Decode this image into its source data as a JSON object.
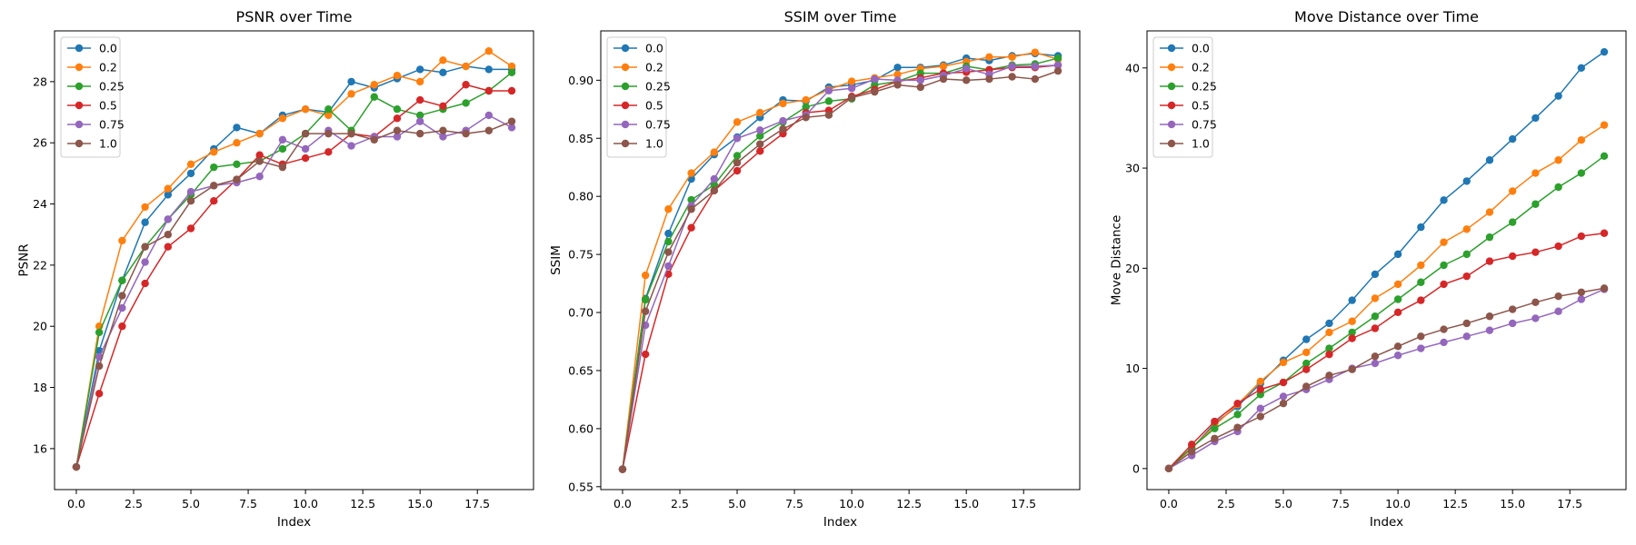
{
  "figure": {
    "xlabel_common": "Index"
  },
  "chart_data": [
    {
      "type": "line",
      "title": "PSNR over Time",
      "xlabel": "Index",
      "ylabel": "PSNR",
      "xlim": [
        -0.95,
        19.95
      ],
      "ylim": [
        14.66,
        29.66
      ],
      "xticks": [
        0.0,
        2.5,
        5.0,
        7.5,
        10.0,
        12.5,
        15.0,
        17.5
      ],
      "xtick_labels": [
        "0.0",
        "2.5",
        "5.0",
        "7.5",
        "10.0",
        "12.5",
        "15.0",
        "17.5"
      ],
      "yticks": [
        16,
        18,
        20,
        22,
        24,
        26,
        28
      ],
      "ytick_labels": [
        "16",
        "18",
        "20",
        "22",
        "24",
        "26",
        "28"
      ],
      "legend": "top-left",
      "grid": false,
      "x": [
        0,
        1,
        2,
        3,
        4,
        5,
        6,
        7,
        8,
        9,
        10,
        11,
        12,
        13,
        14,
        15,
        16,
        17,
        18,
        19
      ],
      "series": [
        {
          "name": "0.0",
          "color": "#1f77b4",
          "values": [
            15.4,
            19.2,
            21.5,
            23.4,
            24.3,
            25.0,
            25.8,
            26.5,
            26.3,
            26.9,
            27.1,
            27.0,
            28.0,
            27.8,
            28.1,
            28.4,
            28.3,
            28.5,
            28.4,
            28.4
          ]
        },
        {
          "name": "0.2",
          "color": "#ff7f0e",
          "values": [
            15.4,
            20.0,
            22.8,
            23.9,
            24.5,
            25.3,
            25.7,
            26.0,
            26.3,
            26.8,
            27.1,
            26.9,
            27.6,
            27.9,
            28.2,
            28.0,
            28.7,
            28.5,
            29.0,
            28.5
          ]
        },
        {
          "name": "0.25",
          "color": "#2ca02c",
          "values": [
            15.4,
            19.8,
            21.5,
            22.6,
            23.5,
            24.3,
            25.2,
            25.3,
            25.4,
            25.8,
            26.3,
            27.1,
            26.4,
            27.5,
            27.1,
            26.9,
            27.1,
            27.3,
            27.7,
            28.3
          ]
        },
        {
          "name": "0.5",
          "color": "#d62728",
          "values": [
            15.4,
            17.8,
            20.0,
            21.4,
            22.6,
            23.2,
            24.1,
            24.8,
            25.6,
            25.3,
            25.5,
            25.7,
            26.3,
            26.2,
            26.8,
            27.4,
            27.2,
            27.9,
            27.7,
            27.7
          ]
        },
        {
          "name": "0.75",
          "color": "#9467bd",
          "values": [
            15.4,
            19.0,
            20.6,
            22.1,
            23.5,
            24.4,
            24.6,
            24.7,
            24.9,
            26.1,
            25.8,
            26.4,
            25.9,
            26.2,
            26.2,
            26.7,
            26.2,
            26.4,
            26.9,
            26.5
          ]
        },
        {
          "name": "1.0",
          "color": "#8c564b",
          "values": [
            15.4,
            18.7,
            21.0,
            22.6,
            23.0,
            24.1,
            24.6,
            24.8,
            25.4,
            25.2,
            26.3,
            26.3,
            26.3,
            26.1,
            26.4,
            26.3,
            26.4,
            26.3,
            26.4,
            26.7
          ]
        }
      ]
    },
    {
      "type": "line",
      "title": "SSIM over Time",
      "xlabel": "Index",
      "ylabel": "SSIM",
      "xlim": [
        -0.95,
        19.95
      ],
      "ylim": [
        0.5475,
        0.9425
      ],
      "xticks": [
        0.0,
        2.5,
        5.0,
        7.5,
        10.0,
        12.5,
        15.0,
        17.5
      ],
      "xtick_labels": [
        "0.0",
        "2.5",
        "5.0",
        "7.5",
        "10.0",
        "12.5",
        "15.0",
        "17.5"
      ],
      "yticks": [
        0.55,
        0.6,
        0.65,
        0.7,
        0.75,
        0.8,
        0.85,
        0.9
      ],
      "ytick_labels": [
        "0.55",
        "0.60",
        "0.65",
        "0.70",
        "0.75",
        "0.80",
        "0.85",
        "0.90"
      ],
      "legend": "top-left",
      "grid": false,
      "x": [
        0,
        1,
        2,
        3,
        4,
        5,
        6,
        7,
        8,
        9,
        10,
        11,
        12,
        13,
        14,
        15,
        16,
        17,
        18,
        19
      ],
      "series": [
        {
          "name": "0.0",
          "color": "#1f77b4",
          "values": [
            0.565,
            0.712,
            0.768,
            0.815,
            0.836,
            0.851,
            0.868,
            0.883,
            0.882,
            0.894,
            0.896,
            0.9,
            0.911,
            0.911,
            0.913,
            0.919,
            0.917,
            0.921,
            0.923,
            0.921
          ]
        },
        {
          "name": "0.2",
          "color": "#ff7f0e",
          "values": [
            0.565,
            0.732,
            0.789,
            0.82,
            0.838,
            0.864,
            0.872,
            0.88,
            0.883,
            0.892,
            0.899,
            0.902,
            0.905,
            0.91,
            0.912,
            0.916,
            0.92,
            0.92,
            0.924,
            0.918
          ]
        },
        {
          "name": "0.25",
          "color": "#2ca02c",
          "values": [
            0.565,
            0.711,
            0.761,
            0.797,
            0.81,
            0.835,
            0.852,
            0.864,
            0.877,
            0.882,
            0.884,
            0.896,
            0.899,
            0.906,
            0.906,
            0.912,
            0.909,
            0.913,
            0.914,
            0.919
          ]
        },
        {
          "name": "0.5",
          "color": "#d62728",
          "values": [
            0.565,
            0.664,
            0.733,
            0.773,
            0.805,
            0.822,
            0.839,
            0.854,
            0.872,
            0.874,
            0.886,
            0.892,
            0.899,
            0.902,
            0.906,
            0.907,
            0.909,
            0.911,
            0.911,
            0.913
          ]
        },
        {
          "name": "0.75",
          "color": "#9467bd",
          "values": [
            0.565,
            0.689,
            0.74,
            0.792,
            0.815,
            0.85,
            0.857,
            0.865,
            0.87,
            0.891,
            0.893,
            0.901,
            0.9,
            0.9,
            0.904,
            0.91,
            0.905,
            0.912,
            0.912,
            0.913
          ]
        },
        {
          "name": "1.0",
          "color": "#8c564b",
          "values": [
            0.565,
            0.701,
            0.752,
            0.789,
            0.805,
            0.829,
            0.845,
            0.858,
            0.868,
            0.87,
            0.885,
            0.89,
            0.896,
            0.894,
            0.901,
            0.9,
            0.901,
            0.903,
            0.901,
            0.908
          ]
        }
      ]
    },
    {
      "type": "line",
      "title": "Move Distance over Time",
      "xlabel": "Index",
      "ylabel": "Move Distance",
      "xlim": [
        -0.95,
        19.95
      ],
      "ylim": [
        -2.1,
        43.7
      ],
      "xticks": [
        0.0,
        2.5,
        5.0,
        7.5,
        10.0,
        12.5,
        15.0,
        17.5
      ],
      "xtick_labels": [
        "0.0",
        "2.5",
        "5.0",
        "7.5",
        "10.0",
        "12.5",
        "15.0",
        "17.5"
      ],
      "yticks": [
        0,
        10,
        20,
        30,
        40
      ],
      "ytick_labels": [
        "0",
        "10",
        "20",
        "30",
        "40"
      ],
      "legend": "top-left",
      "grid": false,
      "x": [
        0,
        1,
        2,
        3,
        4,
        5,
        6,
        7,
        8,
        9,
        10,
        11,
        12,
        13,
        14,
        15,
        16,
        17,
        18,
        19
      ],
      "series": [
        {
          "name": "0.0",
          "color": "#1f77b4",
          "values": [
            0.0,
            2.0,
            4.5,
            6.2,
            8.5,
            10.8,
            12.9,
            14.5,
            16.8,
            19.4,
            21.4,
            24.1,
            26.8,
            28.7,
            30.8,
            32.9,
            35.0,
            37.2,
            40.0,
            41.6
          ]
        },
        {
          "name": "0.2",
          "color": "#ff7f0e",
          "values": [
            0.0,
            2.0,
            4.3,
            6.4,
            8.7,
            10.6,
            11.6,
            13.6,
            14.7,
            17.0,
            18.4,
            20.3,
            22.6,
            23.9,
            25.6,
            27.7,
            29.5,
            30.8,
            32.8,
            34.3
          ]
        },
        {
          "name": "0.25",
          "color": "#2ca02c",
          "values": [
            0.0,
            2.1,
            4.0,
            5.4,
            7.4,
            8.6,
            10.5,
            12.0,
            13.6,
            15.2,
            16.9,
            18.6,
            20.3,
            21.4,
            23.1,
            24.6,
            26.4,
            28.1,
            29.5,
            31.2
          ]
        },
        {
          "name": "0.5",
          "color": "#d62728",
          "values": [
            0.0,
            2.4,
            4.7,
            6.5,
            7.9,
            8.6,
            9.9,
            11.4,
            13.0,
            14.0,
            15.6,
            16.8,
            18.4,
            19.2,
            20.7,
            21.2,
            21.6,
            22.2,
            23.2,
            23.5
          ]
        },
        {
          "name": "0.75",
          "color": "#9467bd",
          "values": [
            0.0,
            1.3,
            2.7,
            3.7,
            6.0,
            7.2,
            7.9,
            8.9,
            10.0,
            10.5,
            11.3,
            12.0,
            12.6,
            13.2,
            13.8,
            14.5,
            15.0,
            15.7,
            16.9,
            17.9
          ]
        },
        {
          "name": "1.0",
          "color": "#8c564b",
          "values": [
            0.0,
            1.7,
            3.0,
            4.1,
            5.2,
            6.5,
            8.2,
            9.3,
            9.9,
            11.2,
            12.2,
            13.2,
            13.9,
            14.5,
            15.2,
            15.9,
            16.6,
            17.2,
            17.6,
            18.0
          ]
        }
      ]
    }
  ]
}
